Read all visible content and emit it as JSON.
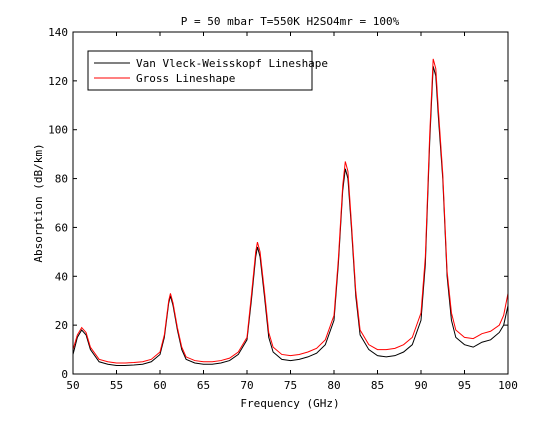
{
  "chart_data": {
    "type": "line",
    "title": "P = 50 mbar  T=550K  H2SO4mr = 100%",
    "xlabel": "Frequency (GHz)",
    "ylabel": "Absorption (dB/km)",
    "xlim": [
      50,
      100
    ],
    "ylim": [
      0,
      140
    ],
    "xticks": [
      50,
      55,
      60,
      65,
      70,
      75,
      80,
      85,
      90,
      95,
      100
    ],
    "yticks": [
      0,
      20,
      40,
      60,
      80,
      100,
      120,
      140
    ],
    "grid": false,
    "legend_position": "top-left",
    "series": [
      {
        "name": "Van Vleck-Weisskopf Lineshape",
        "color": "#000000",
        "points": [
          [
            50,
            8
          ],
          [
            50.5,
            15
          ],
          [
            51,
            18
          ],
          [
            51.5,
            16
          ],
          [
            52,
            10
          ],
          [
            53,
            5
          ],
          [
            54,
            4
          ],
          [
            55,
            3.5
          ],
          [
            56,
            3.5
          ],
          [
            57,
            3.7
          ],
          [
            58,
            4
          ],
          [
            59,
            5
          ],
          [
            60,
            8
          ],
          [
            60.5,
            15
          ],
          [
            61,
            29
          ],
          [
            61.2,
            32
          ],
          [
            61.5,
            28
          ],
          [
            62,
            18
          ],
          [
            62.5,
            10
          ],
          [
            63,
            6
          ],
          [
            64,
            4.5
          ],
          [
            65,
            4
          ],
          [
            66,
            4
          ],
          [
            67,
            4.5
          ],
          [
            68,
            5.5
          ],
          [
            69,
            8
          ],
          [
            70,
            14
          ],
          [
            70.5,
            30
          ],
          [
            71,
            48
          ],
          [
            71.2,
            52
          ],
          [
            71.5,
            48
          ],
          [
            72,
            32
          ],
          [
            72.5,
            15
          ],
          [
            73,
            9
          ],
          [
            74,
            6
          ],
          [
            75,
            5.5
          ],
          [
            76,
            6
          ],
          [
            77,
            7
          ],
          [
            78,
            8.5
          ],
          [
            79,
            12
          ],
          [
            80,
            22
          ],
          [
            80.5,
            45
          ],
          [
            81,
            75
          ],
          [
            81.3,
            84
          ],
          [
            81.6,
            80
          ],
          [
            82,
            60
          ],
          [
            82.5,
            32
          ],
          [
            83,
            16
          ],
          [
            84,
            10
          ],
          [
            85,
            7.5
          ],
          [
            86,
            7
          ],
          [
            87,
            7.5
          ],
          [
            88,
            9
          ],
          [
            89,
            12
          ],
          [
            90,
            22
          ],
          [
            90.5,
            45
          ],
          [
            91,
            95
          ],
          [
            91.4,
            126
          ],
          [
            91.7,
            122
          ],
          [
            92,
            105
          ],
          [
            92.5,
            80
          ],
          [
            93,
            40
          ],
          [
            93.5,
            22
          ],
          [
            94,
            15
          ],
          [
            95,
            12
          ],
          [
            96,
            11
          ],
          [
            96.5,
            12
          ],
          [
            97,
            13
          ],
          [
            98,
            14
          ],
          [
            99,
            17
          ],
          [
            99.5,
            20
          ],
          [
            100,
            28
          ]
        ]
      },
      {
        "name": "Gross Lineshape",
        "color": "#ff0000",
        "points": [
          [
            50,
            10
          ],
          [
            50.5,
            16
          ],
          [
            51,
            19
          ],
          [
            51.5,
            17
          ],
          [
            52,
            11
          ],
          [
            53,
            6
          ],
          [
            54,
            5
          ],
          [
            55,
            4.5
          ],
          [
            56,
            4.5
          ],
          [
            57,
            4.7
          ],
          [
            58,
            5
          ],
          [
            59,
            6
          ],
          [
            60,
            9
          ],
          [
            60.5,
            16
          ],
          [
            61,
            30
          ],
          [
            61.2,
            33
          ],
          [
            61.5,
            29
          ],
          [
            62,
            19
          ],
          [
            62.5,
            11
          ],
          [
            63,
            7
          ],
          [
            64,
            5.5
          ],
          [
            65,
            5
          ],
          [
            66,
            5
          ],
          [
            67,
            5.5
          ],
          [
            68,
            6.5
          ],
          [
            69,
            9
          ],
          [
            70,
            15
          ],
          [
            70.5,
            32
          ],
          [
            71,
            50
          ],
          [
            71.2,
            54
          ],
          [
            71.5,
            50
          ],
          [
            72,
            34
          ],
          [
            72.5,
            17
          ],
          [
            73,
            11
          ],
          [
            74,
            8
          ],
          [
            75,
            7.5
          ],
          [
            76,
            8
          ],
          [
            77,
            9
          ],
          [
            78,
            10.5
          ],
          [
            79,
            14
          ],
          [
            80,
            24
          ],
          [
            80.5,
            47
          ],
          [
            81,
            77
          ],
          [
            81.3,
            87
          ],
          [
            81.6,
            83
          ],
          [
            82,
            62
          ],
          [
            82.5,
            34
          ],
          [
            83,
            18
          ],
          [
            84,
            12
          ],
          [
            85,
            10
          ],
          [
            86,
            10
          ],
          [
            87,
            10.5
          ],
          [
            88,
            12
          ],
          [
            89,
            15
          ],
          [
            90,
            25
          ],
          [
            90.5,
            48
          ],
          [
            91,
            98
          ],
          [
            91.4,
            129
          ],
          [
            91.7,
            125
          ],
          [
            92,
            108
          ],
          [
            92.5,
            82
          ],
          [
            93,
            42
          ],
          [
            93.5,
            25
          ],
          [
            94,
            18
          ],
          [
            95,
            15
          ],
          [
            96,
            14.5
          ],
          [
            96.5,
            15.5
          ],
          [
            97,
            16.5
          ],
          [
            98,
            17.5
          ],
          [
            99,
            20
          ],
          [
            99.5,
            24
          ],
          [
            100,
            33
          ]
        ]
      }
    ]
  }
}
